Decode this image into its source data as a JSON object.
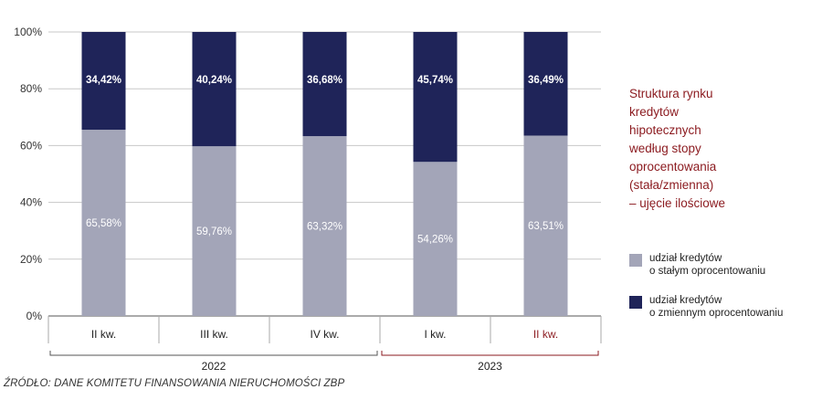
{
  "chart_data": {
    "type": "bar",
    "stacked": true,
    "title": "Struktura rynku\nkredytów\nhipotecznych\nwedług stopy\noprocentowania\n(stała/zmienna)\n– ujęcie ilościowe",
    "categories": [
      "II kw.",
      "III kw.",
      "IV kw.",
      "I kw.",
      "II kw."
    ],
    "groups": [
      {
        "label": "2022",
        "from": 0,
        "to": 2
      },
      {
        "label": "2023",
        "from": 3,
        "to": 4
      }
    ],
    "series": [
      {
        "name": "udział kredytów\no stałym oprocentowaniu",
        "values": [
          65.58,
          59.76,
          63.32,
          54.26,
          63.51
        ],
        "labels": [
          "65,58%",
          "59,76%",
          "63,32%",
          "54,26%",
          "63,51%"
        ],
        "color": "#a3a5b8"
      },
      {
        "name": "udział kredytów\no zmiennym oprocentowaniu",
        "values": [
          34.42,
          40.24,
          36.68,
          45.74,
          36.49
        ],
        "labels": [
          "34,42%",
          "40,24%",
          "36,68%",
          "45,74%",
          "36,49%"
        ],
        "color": "#1f2459"
      }
    ],
    "yticks": [
      "0%",
      "20%",
      "40%",
      "60%",
      "80%",
      "100%"
    ],
    "ylim": [
      0,
      100
    ],
    "grid": true,
    "colors": {
      "highlight": "#8b1a1f",
      "axis": "#555555",
      "grid": "#c8c8c8"
    }
  },
  "source": "ŹRÓDŁO: DANE KOMITETU FINANSOWANIA NIERUCHOMOŚCI ZBP"
}
